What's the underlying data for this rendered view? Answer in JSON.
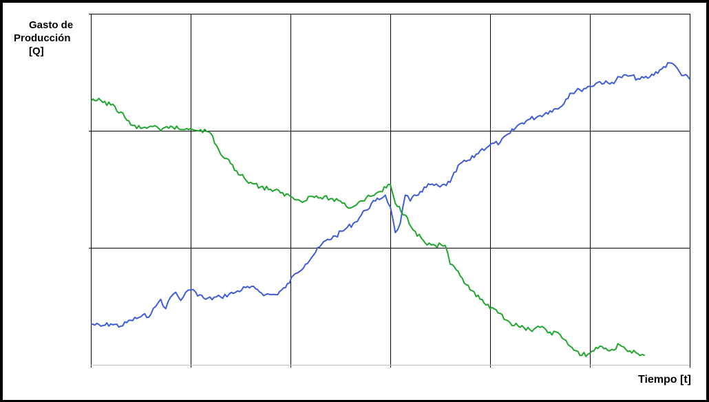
{
  "chart_data": {
    "type": "line",
    "title": "",
    "ylabel": [
      "Gasto de",
      "Producción",
      "[Q]"
    ],
    "xlabel": "Tiempo [t]",
    "xlim": [
      0,
      6
    ],
    "ylim": [
      0,
      3
    ],
    "grid": true,
    "legend": "none",
    "series": [
      {
        "color": "#3d5cdc",
        "points": [
          [
            0.0,
            0.35
          ],
          [
            0.1,
            0.33
          ],
          [
            0.2,
            0.35
          ],
          [
            0.3,
            0.33
          ],
          [
            0.4,
            0.38
          ],
          [
            0.5,
            0.41
          ],
          [
            0.6,
            0.43
          ],
          [
            0.65,
            0.5
          ],
          [
            0.7,
            0.56
          ],
          [
            0.75,
            0.48
          ],
          [
            0.8,
            0.58
          ],
          [
            0.85,
            0.62
          ],
          [
            0.9,
            0.55
          ],
          [
            0.95,
            0.62
          ],
          [
            1.0,
            0.64
          ],
          [
            1.05,
            0.62
          ],
          [
            1.15,
            0.56
          ],
          [
            1.3,
            0.58
          ],
          [
            1.45,
            0.62
          ],
          [
            1.55,
            0.66
          ],
          [
            1.65,
            0.65
          ],
          [
            1.75,
            0.6
          ],
          [
            1.85,
            0.6
          ],
          [
            1.95,
            0.66
          ],
          [
            2.05,
            0.78
          ],
          [
            2.15,
            0.86
          ],
          [
            2.25,
            0.96
          ],
          [
            2.35,
            1.06
          ],
          [
            2.45,
            1.1
          ],
          [
            2.55,
            1.16
          ],
          [
            2.65,
            1.22
          ],
          [
            2.75,
            1.32
          ],
          [
            2.85,
            1.4
          ],
          [
            2.95,
            1.45
          ],
          [
            3.0,
            1.35
          ],
          [
            3.05,
            1.13
          ],
          [
            3.1,
            1.21
          ],
          [
            3.15,
            1.45
          ],
          [
            3.2,
            1.4
          ],
          [
            3.3,
            1.48
          ],
          [
            3.4,
            1.54
          ],
          [
            3.5,
            1.52
          ],
          [
            3.6,
            1.56
          ],
          [
            3.7,
            1.72
          ],
          [
            3.8,
            1.75
          ],
          [
            3.9,
            1.83
          ],
          [
            4.0,
            1.88
          ],
          [
            4.1,
            1.9
          ],
          [
            4.2,
            1.98
          ],
          [
            4.3,
            2.06
          ],
          [
            4.4,
            2.1
          ],
          [
            4.5,
            2.13
          ],
          [
            4.6,
            2.17
          ],
          [
            4.7,
            2.2
          ],
          [
            4.8,
            2.32
          ],
          [
            4.9,
            2.35
          ],
          [
            5.0,
            2.38
          ],
          [
            5.1,
            2.42
          ],
          [
            5.2,
            2.4
          ],
          [
            5.3,
            2.46
          ],
          [
            5.4,
            2.47
          ],
          [
            5.5,
            2.44
          ],
          [
            5.6,
            2.46
          ],
          [
            5.7,
            2.52
          ],
          [
            5.8,
            2.58
          ],
          [
            5.85,
            2.56
          ],
          [
            5.9,
            2.5
          ],
          [
            6.0,
            2.44
          ]
        ]
      },
      {
        "color": "#1fa62c",
        "points": [
          [
            0.0,
            2.25
          ],
          [
            0.1,
            2.26
          ],
          [
            0.2,
            2.22
          ],
          [
            0.3,
            2.16
          ],
          [
            0.4,
            2.05
          ],
          [
            0.5,
            2.02
          ],
          [
            0.6,
            2.04
          ],
          [
            0.7,
            2.0
          ],
          [
            0.8,
            2.04
          ],
          [
            0.9,
            2.01
          ],
          [
            1.0,
            2.02
          ],
          [
            1.1,
            2.01
          ],
          [
            1.2,
            1.98
          ],
          [
            1.3,
            1.8
          ],
          [
            1.4,
            1.72
          ],
          [
            1.5,
            1.62
          ],
          [
            1.6,
            1.56
          ],
          [
            1.7,
            1.52
          ],
          [
            1.8,
            1.5
          ],
          [
            1.9,
            1.47
          ],
          [
            2.0,
            1.44
          ],
          [
            2.1,
            1.4
          ],
          [
            2.2,
            1.44
          ],
          [
            2.3,
            1.43
          ],
          [
            2.4,
            1.42
          ],
          [
            2.5,
            1.4
          ],
          [
            2.6,
            1.34
          ],
          [
            2.7,
            1.4
          ],
          [
            2.8,
            1.44
          ],
          [
            2.9,
            1.48
          ],
          [
            3.0,
            1.54
          ],
          [
            3.05,
            1.38
          ],
          [
            3.15,
            1.28
          ],
          [
            3.25,
            1.14
          ],
          [
            3.35,
            1.04
          ],
          [
            3.45,
            1.02
          ],
          [
            3.55,
            1.02
          ],
          [
            3.6,
            0.86
          ],
          [
            3.7,
            0.76
          ],
          [
            3.8,
            0.64
          ],
          [
            3.9,
            0.56
          ],
          [
            4.0,
            0.48
          ],
          [
            4.1,
            0.44
          ],
          [
            4.2,
            0.36
          ],
          [
            4.3,
            0.32
          ],
          [
            4.4,
            0.3
          ],
          [
            4.5,
            0.32
          ],
          [
            4.6,
            0.28
          ],
          [
            4.7,
            0.26
          ],
          [
            4.8,
            0.16
          ],
          [
            4.9,
            0.08
          ],
          [
            5.0,
            0.1
          ],
          [
            5.1,
            0.16
          ],
          [
            5.2,
            0.12
          ],
          [
            5.3,
            0.17
          ],
          [
            5.4,
            0.12
          ],
          [
            5.5,
            0.08
          ],
          [
            5.55,
            0.08
          ]
        ]
      }
    ]
  }
}
